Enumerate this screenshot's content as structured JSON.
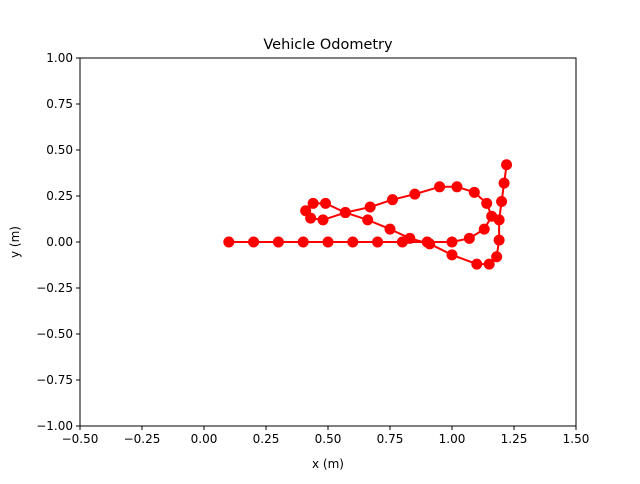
{
  "chart_data": {
    "type": "line",
    "title": "Vehicle Odometry",
    "xlabel": "x (m)",
    "ylabel": "y (m)",
    "xlim": [
      -0.5,
      1.5
    ],
    "ylim": [
      -1.0,
      1.0
    ],
    "xticks": [
      "−0.50",
      "−0.25",
      "0.00",
      "0.25",
      "0.50",
      "0.75",
      "1.00",
      "1.25",
      "1.50"
    ],
    "yticks": [
      "−1.00",
      "−0.75",
      "−0.50",
      "−0.25",
      "0.00",
      "0.25",
      "0.50",
      "0.75",
      "1.00"
    ],
    "grid": false,
    "legend": false,
    "series": [
      {
        "color": "#ff0000",
        "marker": "circle",
        "points": [
          [
            0.1,
            0.0
          ],
          [
            0.2,
            0.0
          ],
          [
            0.3,
            0.0
          ],
          [
            0.4,
            0.0
          ],
          [
            0.5,
            0.0
          ],
          [
            0.6,
            0.0
          ],
          [
            0.7,
            0.0
          ],
          [
            0.8,
            0.0
          ],
          [
            0.9,
            0.0
          ],
          [
            1.0,
            0.0
          ],
          [
            1.07,
            0.02
          ],
          [
            1.13,
            0.07
          ],
          [
            1.16,
            0.14
          ],
          [
            1.14,
            0.21
          ],
          [
            1.09,
            0.27
          ],
          [
            1.02,
            0.3
          ],
          [
            0.95,
            0.3
          ],
          [
            0.85,
            0.26
          ],
          [
            0.76,
            0.23
          ],
          [
            0.67,
            0.19
          ],
          [
            0.57,
            0.16
          ],
          [
            0.48,
            0.12
          ],
          [
            0.43,
            0.13
          ],
          [
            0.41,
            0.17
          ],
          [
            0.44,
            0.21
          ],
          [
            0.49,
            0.21
          ],
          [
            0.57,
            0.16
          ],
          [
            0.66,
            0.12
          ],
          [
            0.75,
            0.07
          ],
          [
            0.83,
            0.02
          ],
          [
            0.91,
            -0.01
          ],
          [
            1.0,
            -0.07
          ],
          [
            1.1,
            -0.12
          ],
          [
            1.15,
            -0.12
          ],
          [
            1.18,
            -0.08
          ],
          [
            1.19,
            0.01
          ],
          [
            1.19,
            0.12
          ],
          [
            1.2,
            0.22
          ],
          [
            1.21,
            0.32
          ],
          [
            1.22,
            0.42
          ]
        ]
      }
    ]
  }
}
